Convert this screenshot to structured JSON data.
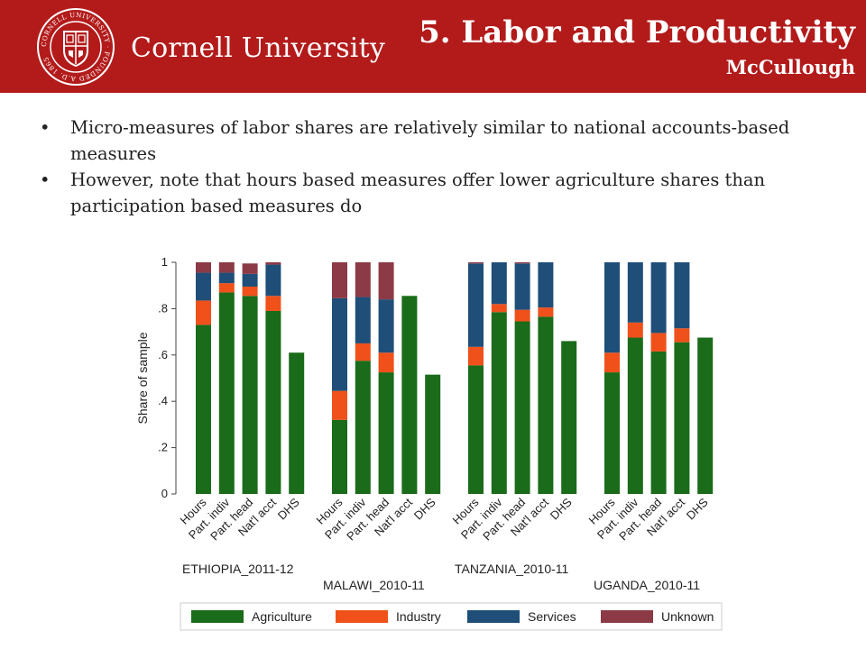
{
  "header": {
    "university": "Cornell University",
    "title": "5. Labor and Productivity",
    "author": "McCullough",
    "seal_text": "CORNELL UNIVERSITY · FOUNDED A.D. 1865"
  },
  "bullets": [
    "Micro-measures of labor shares are relatively similar to national accounts-based measures",
    "However, note that hours based measures offer lower agriculture shares than participation based measures do"
  ],
  "colors": {
    "header_bg": "#b31b1b",
    "agriculture": "#1a6b1a",
    "industry": "#f0501a",
    "services": "#1f4e79",
    "unknown": "#8c3a45"
  },
  "chart_data": {
    "type": "bar",
    "stacked": true,
    "ylabel": "Share of sample",
    "ylim": [
      0,
      1
    ],
    "yticks": [
      0,
      0.2,
      0.4,
      0.6,
      0.8,
      1
    ],
    "ytick_labels": [
      "0",
      ".2",
      ".4",
      ".6",
      ".8",
      "1"
    ],
    "categories": [
      "Hours",
      "Part. indiv",
      "Part. head",
      "Nat'l acct",
      "DHS"
    ],
    "series_names": [
      "Agriculture",
      "Industry",
      "Services",
      "Unknown"
    ],
    "legend_position": "bottom",
    "groups": [
      {
        "name": "ETHIOPIA_2011-12",
        "values": {
          "Agriculture": [
            0.73,
            0.87,
            0.855,
            0.79,
            0.61
          ],
          "Industry": [
            0.105,
            0.04,
            0.04,
            0.065,
            0
          ],
          "Services": [
            0.12,
            0.045,
            0.055,
            0.135,
            0
          ],
          "Unknown": [
            0.045,
            0.045,
            0.045,
            0.01,
            0
          ]
        }
      },
      {
        "name": "MALAWI_2010-11",
        "values": {
          "Agriculture": [
            0.32,
            0.575,
            0.525,
            0.855,
            0.515
          ],
          "Industry": [
            0.125,
            0.075,
            0.085,
            0,
            0
          ],
          "Services": [
            0.4,
            0.2,
            0.23,
            0,
            0
          ],
          "Unknown": [
            0.155,
            0.15,
            0.16,
            0,
            0
          ]
        }
      },
      {
        "name": "TANZANIA_2010-11",
        "values": {
          "Agriculture": [
            0.555,
            0.785,
            0.745,
            0.765,
            0.66
          ],
          "Industry": [
            0.08,
            0.035,
            0.05,
            0.04,
            0
          ],
          "Services": [
            0.36,
            0.18,
            0.2,
            0.195,
            0
          ],
          "Unknown": [
            0.005,
            0,
            0.005,
            0,
            0
          ]
        }
      },
      {
        "name": "UGANDA_2010-11",
        "values": {
          "Agriculture": [
            0.525,
            0.675,
            0.615,
            0.655,
            0.675
          ],
          "Industry": [
            0.085,
            0.065,
            0.08,
            0.06,
            0
          ],
          "Services": [
            0.39,
            0.26,
            0.305,
            0.285,
            0
          ],
          "Unknown": [
            0,
            0,
            0,
            0,
            0
          ]
        }
      }
    ]
  }
}
